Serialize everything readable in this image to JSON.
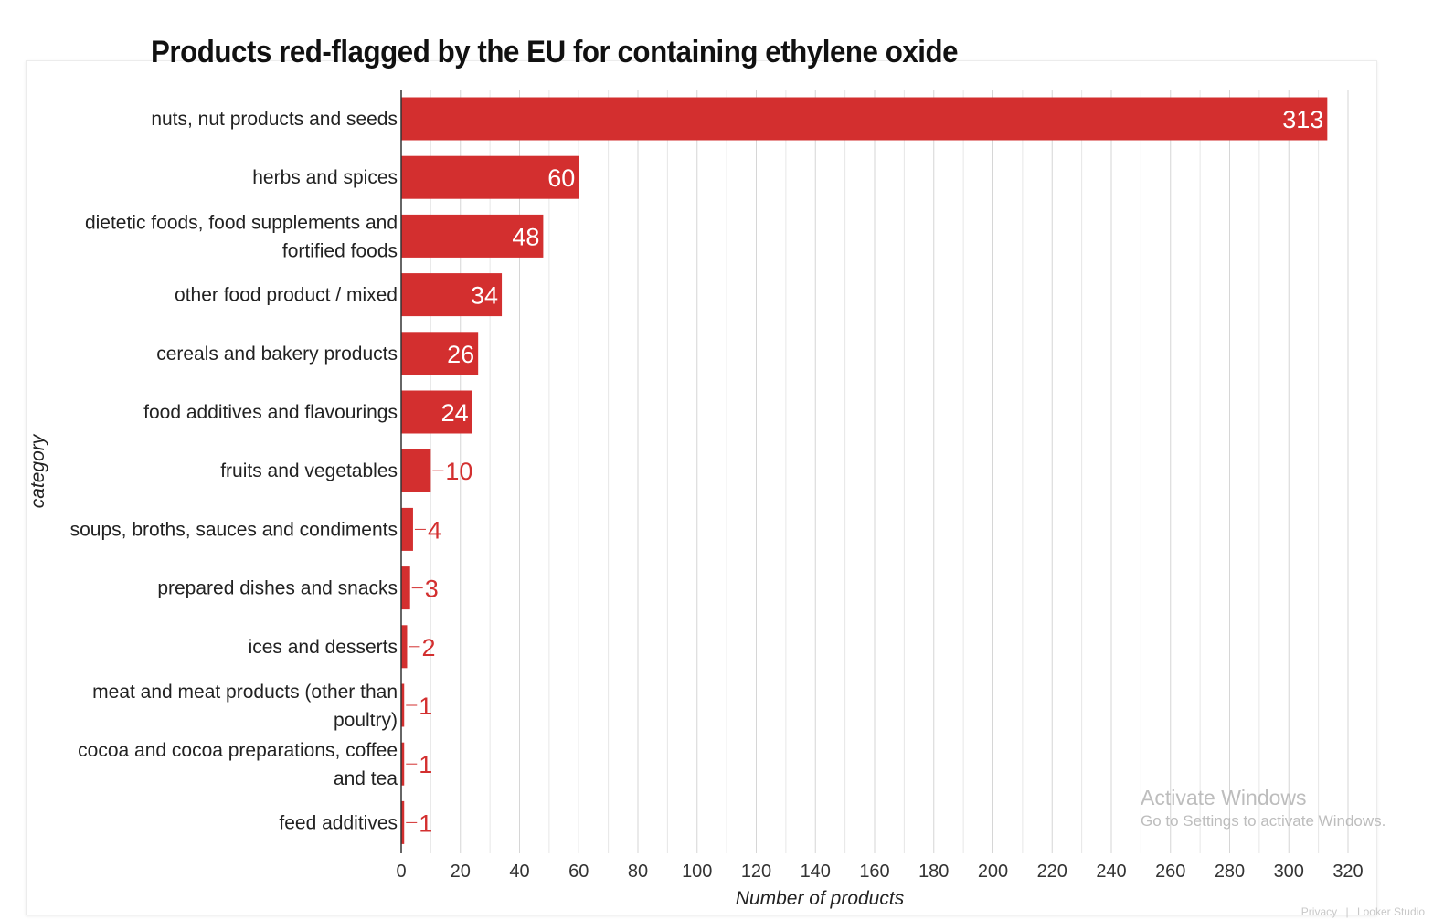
{
  "chart_data": {
    "type": "bar",
    "orientation": "horizontal",
    "title": "Products red-flagged by the EU for containing ethylene oxide",
    "xlabel": "Number of products",
    "ylabel": "category",
    "xlim": [
      0,
      320
    ],
    "xticks": [
      0,
      20,
      40,
      60,
      80,
      100,
      120,
      140,
      160,
      180,
      200,
      220,
      240,
      260,
      280,
      300,
      320
    ],
    "grid": true,
    "bar_color": "#d32f2f",
    "categories": [
      [
        "nuts, nut products and seeds"
      ],
      [
        "herbs and spices"
      ],
      [
        "dietetic foods, food supplements and",
        "fortified foods"
      ],
      [
        "other food product / mixed"
      ],
      [
        "cereals and bakery products"
      ],
      [
        "food additives and flavourings"
      ],
      [
        "fruits and vegetables"
      ],
      [
        "soups, broths, sauces and condiments"
      ],
      [
        "prepared dishes and snacks"
      ],
      [
        "ices and desserts"
      ],
      [
        "meat and meat products (other than",
        "poultry)"
      ],
      [
        "cocoa and cocoa preparations, coffee",
        "and tea"
      ],
      [
        "feed additives"
      ]
    ],
    "values": [
      313,
      60,
      48,
      34,
      26,
      24,
      10,
      4,
      3,
      2,
      1,
      1,
      1
    ]
  },
  "watermark": {
    "title": "Activate Windows",
    "subtitle": "Go to Settings to activate Windows."
  },
  "footer": {
    "privacy": "Privacy",
    "separator": "|",
    "brand": "Looker Studio"
  }
}
